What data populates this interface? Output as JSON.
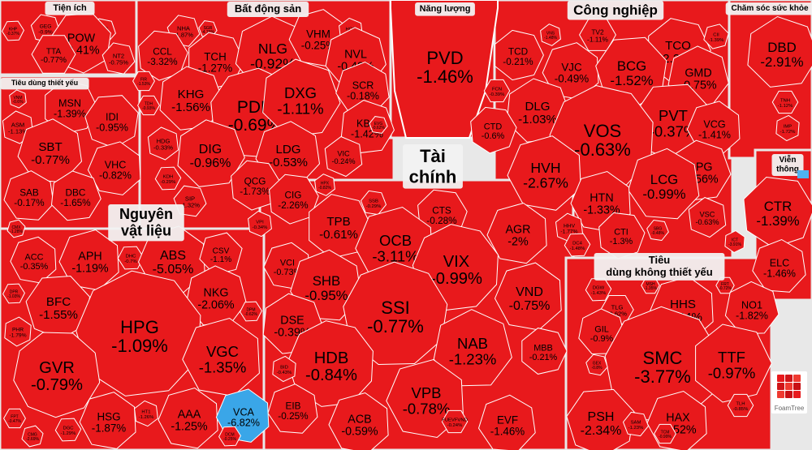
{
  "chart_data": {
    "type": "treemap",
    "title": "",
    "colors": {
      "down": "#e8191c",
      "floor": "#3aa6e8",
      "ceiling": "#4fb3f0"
    },
    "watermark": "FoamTree",
    "sectors": [
      {
        "name": "Tiện ích",
        "stocks": [
          [
            "KHP",
            "-0.37%"
          ],
          [
            "GEG",
            "-0.9%"
          ],
          [
            "GAS",
            "-0.16%"
          ],
          [
            "POW",
            "-0.41%"
          ],
          [
            "TTA",
            "-0.77%"
          ],
          [
            "NT2",
            "-0.75%"
          ]
        ]
      },
      {
        "name": "Bất động sản",
        "stocks": [
          [
            "NHA",
            "-1.87%"
          ],
          [
            "SGR",
            "-4.76%"
          ],
          [
            "TCH",
            "-1.27%"
          ],
          [
            "NLG",
            "-0.92%"
          ],
          [
            "VHM",
            "-0.25%"
          ],
          [
            "HQC",
            "-0.98%"
          ],
          [
            "CCL",
            "-3.32%"
          ],
          [
            "NVL",
            "-0.48%"
          ],
          [
            "FIR",
            "-1.53%"
          ],
          [
            "KHG",
            "-1.56%"
          ],
          [
            "PDR",
            "-0.69%"
          ],
          [
            "DXG",
            "-1.11%"
          ],
          [
            "SCR",
            "-0.18%"
          ],
          [
            "TDH",
            "-0.93%"
          ],
          [
            "KBC",
            "-1.42%"
          ],
          [
            "EVG",
            "-0.62%"
          ],
          [
            "HDG",
            "-0.33%"
          ],
          [
            "DIG",
            "-0.96%"
          ],
          [
            "LDG",
            "-0.53%"
          ],
          [
            "VIC",
            "-0.24%"
          ],
          [
            "KDH",
            "-0.29%"
          ],
          [
            "QCG",
            "-1.73%"
          ],
          [
            "SIP",
            "-1.32%"
          ],
          [
            "CIG",
            "-2.26%"
          ],
          [
            "HPX",
            "-0.82%"
          ],
          [
            "VPI",
            "-0.34%"
          ]
        ]
      },
      {
        "name": "Năng lượng",
        "stocks": [
          [
            "PVD",
            "-1.46%"
          ]
        ]
      },
      {
        "name": "Công nghiệp",
        "stocks": [
          [
            "TCD",
            "-0.21%"
          ],
          [
            "VNS",
            "-1.48%"
          ],
          [
            "TV2",
            "-1.11%"
          ],
          [
            "TCO",
            "-2.27%"
          ],
          [
            "CII",
            "-1.39%"
          ],
          [
            "VJC",
            "-0.49%"
          ],
          [
            "BCG",
            "-1.52%"
          ],
          [
            "GMD",
            "-0.75%"
          ],
          [
            "FCN",
            "-0.39%"
          ],
          [
            "DLG",
            "-1.03%"
          ],
          [
            "PVT",
            "-0.37%"
          ],
          [
            "CTD",
            "-0.6%"
          ],
          [
            "VOS",
            "-0.63%"
          ],
          [
            "VCG",
            "-1.41%"
          ],
          [
            "HVH",
            "-2.67%"
          ],
          [
            "DPG",
            "-1.56%"
          ],
          [
            "LCG",
            "-0.99%"
          ],
          [
            "HTN",
            "-1.33%"
          ],
          [
            "HHV",
            "-1.77%"
          ],
          [
            "CTI",
            "-1.3%"
          ],
          [
            "VSC",
            "-0.63%"
          ],
          [
            "DC4",
            "-1.48%"
          ],
          [
            "SBG",
            "-0.48%"
          ]
        ]
      },
      {
        "name": "Chăm sóc sức khỏe",
        "stocks": [
          [
            "DBD",
            "-2.91%"
          ],
          [
            "TNH",
            "-1.12%"
          ],
          [
            "IMP",
            "-1.72%"
          ]
        ]
      },
      {
        "name": "Tiêu dùng thiết yếu",
        "stocks": [
          [
            "VNM",
            "-0.6%"
          ],
          [
            "MSN",
            "-1.39%"
          ],
          [
            "ASM",
            "-1.13%"
          ],
          [
            "IDI",
            "-0.95%"
          ],
          [
            "SBT",
            "-0.77%"
          ],
          [
            "VHC",
            "-0.82%"
          ],
          [
            "SAB",
            "-0.17%"
          ],
          [
            "DBC",
            "-1.65%"
          ],
          [
            "CMX",
            "-1.28%"
          ]
        ]
      },
      {
        "name": "Tài chính",
        "stocks": [
          [
            "SSB",
            "-0.29%"
          ],
          [
            "CTS",
            "-0.28%"
          ],
          [
            "TPB",
            "-0.61%"
          ],
          [
            "OCB",
            "-3.11%"
          ],
          [
            "AGR",
            "-2%"
          ],
          [
            "VCI",
            "-0.73%"
          ],
          [
            "VIX",
            "-0.99%"
          ],
          [
            "SHB",
            "-0.95%"
          ],
          [
            "VND",
            "-0.75%"
          ],
          [
            "SSI",
            "-0.77%"
          ],
          [
            "DSE",
            "-0.39%"
          ],
          [
            "HDB",
            "-0.84%"
          ],
          [
            "NAB",
            "-1.23%"
          ],
          [
            "MBB",
            "-0.21%"
          ],
          [
            "BID",
            "-0.43%"
          ],
          [
            "VPB",
            "-0.78%"
          ],
          [
            "EIB",
            "-0.25%"
          ],
          [
            "ACB",
            "-0.59%"
          ],
          [
            "EVF",
            "-1.46%"
          ],
          [
            "FUEVFVND",
            "-0.24%"
          ]
        ]
      },
      {
        "name": "Viễn thông",
        "stocks": [
          [
            "CTR",
            "-1.39%"
          ],
          [
            "ELC",
            "-1.46%"
          ],
          [
            "ICT",
            "-3.91%"
          ]
        ]
      },
      {
        "name": "Nguyên vật liệu",
        "stocks": [
          [
            "ACC",
            "-0.35%"
          ],
          [
            "APH",
            "-1.19%"
          ],
          [
            "DHC",
            "-0.7%"
          ],
          [
            "ABS",
            "-5.05%"
          ],
          [
            "CSV",
            "-1.1%"
          ],
          [
            "BFC",
            "-1.55%"
          ],
          [
            "NKG",
            "-2.06%"
          ],
          [
            "PHR",
            "-1.79%"
          ],
          [
            "HPG",
            "-1.09%"
          ],
          [
            "VGC",
            "-1.35%"
          ],
          [
            "GVR",
            "-0.79%"
          ],
          [
            "HSG",
            "-1.87%"
          ],
          [
            "HT1",
            "-1.26%"
          ],
          [
            "AAA",
            "-1.25%"
          ],
          [
            "VCA",
            "-6.82%"
          ],
          [
            "DPR",
            "-1.03%"
          ],
          [
            "DPM",
            "-0.62%"
          ],
          [
            "FPT",
            "-0.47%"
          ],
          [
            "CMG",
            "-2.69%"
          ],
          [
            "DGC",
            "-1.29%"
          ],
          [
            "DCM",
            "-0.25%"
          ]
        ]
      },
      {
        "name": "Tiêu dùng không thiết yếu",
        "stocks": [
          [
            "DGW",
            "-1.43%"
          ],
          [
            "MSH",
            "-1.35%"
          ],
          [
            "FRT",
            "-0.72%"
          ],
          [
            "TLG",
            "-2.62%"
          ],
          [
            "HHS",
            "-1.44%"
          ],
          [
            "NO1",
            "-1.82%"
          ],
          [
            "GIL",
            "-0.9%"
          ],
          [
            "SMC",
            "-3.77%"
          ],
          [
            "TTF",
            "-0.97%"
          ],
          [
            "GEX",
            "-0.8%"
          ],
          [
            "PSH",
            "-2.34%"
          ],
          [
            "HAX",
            "-1.52%"
          ],
          [
            "TLH",
            "-0.85%"
          ],
          [
            "SAM",
            "-1.23%"
          ],
          [
            "TCM",
            "-0.99%"
          ]
        ]
      }
    ]
  }
}
